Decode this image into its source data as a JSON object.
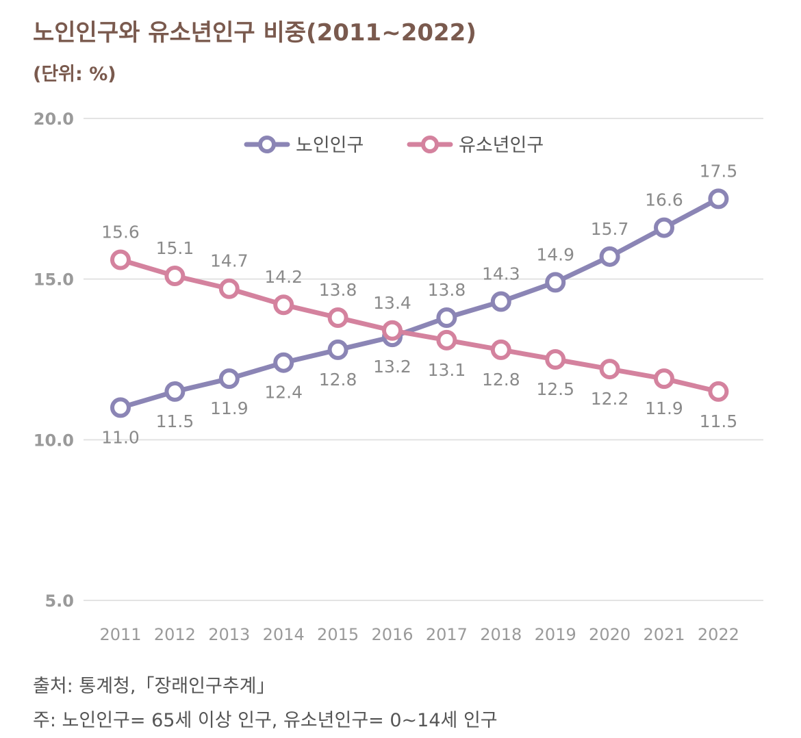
{
  "title": "노인인구와 유소년인구 비중(2011~2022)",
  "unit": "(단위: %)",
  "source": "출처: 통계청,「장래인구추계」",
  "note": "주: 노인인구= 65세 이상 인구, 유소년인구= 0~14세 인구",
  "chart_data": {
    "type": "line",
    "title": "노인인구와 유소년인구 비중(2011~2022)",
    "xlabel": "",
    "ylabel": "(단위: %)",
    "ylim": [
      5,
      20
    ],
    "yticks": [
      "5.0",
      "10.0",
      "15.0",
      "20.0"
    ],
    "grid": true,
    "legend_position": "top-center",
    "categories": [
      "2011",
      "2012",
      "2013",
      "2014",
      "2015",
      "2016",
      "2017",
      "2018",
      "2019",
      "2020",
      "2021",
      "2022"
    ],
    "series": [
      {
        "name": "노인인구",
        "color": "#8b85b5",
        "values": [
          11.0,
          11.5,
          11.9,
          12.4,
          12.8,
          13.2,
          13.8,
          14.3,
          14.9,
          15.7,
          16.6,
          17.5
        ],
        "labels": [
          "11.0",
          "11.5",
          "11.9",
          "12.4",
          "12.8",
          "13.2",
          "13.8",
          "14.3",
          "14.9",
          "15.7",
          "16.6",
          "17.5"
        ]
      },
      {
        "name": "유소년인구",
        "color": "#d4829e",
        "values": [
          15.6,
          15.1,
          14.7,
          14.2,
          13.8,
          13.4,
          13.1,
          12.8,
          12.5,
          12.2,
          11.9,
          11.5
        ],
        "labels": [
          "15.6",
          "15.1",
          "14.7",
          "14.2",
          "13.8",
          "13.4",
          "13.1",
          "12.8",
          "12.5",
          "12.2",
          "11.9",
          "11.5"
        ]
      }
    ]
  }
}
